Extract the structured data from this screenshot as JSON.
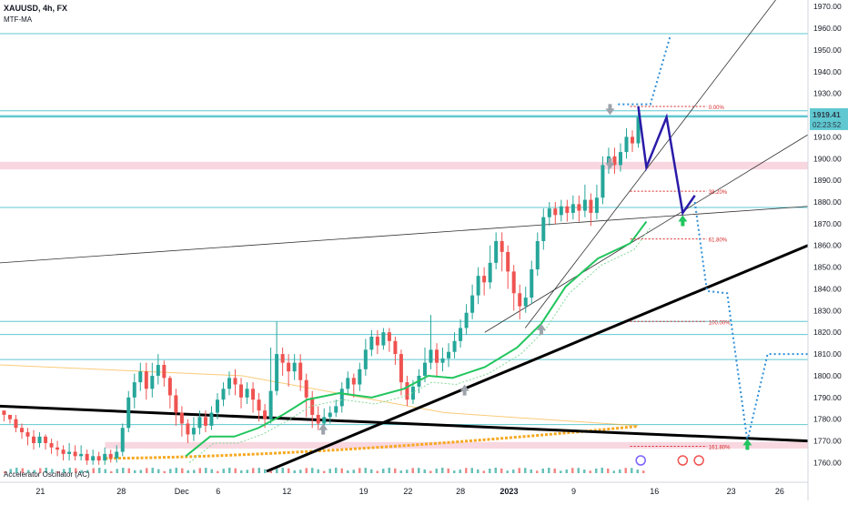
{
  "header": {
    "symbol": "XAUUSD, 4h, FX",
    "indicator": "MTF-MA"
  },
  "oscillator": {
    "label": "Accelerator Oscillator (AC)"
  },
  "price_tag": {
    "price": "1919.41",
    "countdown": "02:23:52",
    "color": "#2b3a4a"
  },
  "colors": {
    "up": "#26a69a",
    "down": "#ef5350",
    "ma": "#22c55e",
    "ma2": "#86d99a",
    "hline": "#5fc8d0",
    "zone": "#f8d7e0",
    "projection": "#2f8fd6",
    "wave": "#2a1aa8",
    "fib": "#d62828",
    "ema_orange": "#f6a821"
  },
  "chart_data": {
    "type": "candlestick",
    "symbol": "XAUUSD",
    "timeframe": "4h",
    "y_range": [
      1756,
      1973
    ],
    "y_ticks": [
      1760,
      1770,
      1780,
      1790,
      1800,
      1810,
      1820,
      1830,
      1840,
      1850,
      1860,
      1870,
      1880,
      1890,
      1900,
      1910,
      1920,
      1930,
      1940,
      1950,
      1960,
      1970
    ],
    "x_ticks": [
      {
        "label": "21",
        "x": 0.05
      },
      {
        "label": "28",
        "x": 0.15
      },
      {
        "label": "Dec",
        "x": 0.225
      },
      {
        "label": "6",
        "x": 0.27
      },
      {
        "label": "12",
        "x": 0.355
      },
      {
        "label": "19",
        "x": 0.45
      },
      {
        "label": "22",
        "x": 0.505
      },
      {
        "label": "28",
        "x": 0.57
      },
      {
        "label": "2023",
        "x": 0.63,
        "bold": true
      },
      {
        "label": "9",
        "x": 0.71
      },
      {
        "label": "16",
        "x": 0.81
      },
      {
        "label": "23",
        "x": 0.905
      },
      {
        "label": "26",
        "x": 0.965
      }
    ],
    "horizontal_levels": [
      1957.5,
      1922,
      1819,
      1777.5,
      1877.5,
      1825,
      1807.5
    ],
    "main_level": 1919.41,
    "zones": [
      {
        "from": 1895,
        "to": 1898.5,
        "x_from": 0.0,
        "x_to": 1.0
      },
      {
        "from": 1766.5,
        "to": 1769.5,
        "x_from": 0.13,
        "x_to": 1.0
      }
    ],
    "fib_levels": [
      {
        "label": "0.00%",
        "value": 1924
      },
      {
        "label": "38.20%",
        "value": 1885
      },
      {
        "label": "61.80%",
        "value": 1863
      },
      {
        "label": "100.00%",
        "value": 1825
      },
      {
        "label": "161.80%",
        "value": 1767.5
      }
    ],
    "trendlines": [
      {
        "from": [
          0.0,
          1852
        ],
        "to": [
          1.0,
          1878
        ],
        "style": "thin"
      },
      {
        "from": [
          0.65,
          1822
        ],
        "to": [
          0.96,
          1973
        ],
        "style": "thin"
      },
      {
        "from": [
          0.6,
          1820
        ],
        "to": [
          1.0,
          1911
        ],
        "style": "thin"
      },
      {
        "from": [
          0.33,
          1756
        ],
        "to": [
          1.0,
          1860
        ],
        "style": "bold"
      },
      {
        "from": [
          0.0,
          1786
        ],
        "to": [
          1.0,
          1770
        ],
        "style": "bold"
      }
    ],
    "ma_line": [
      [
        0.23,
        1763
      ],
      [
        0.26,
        1772
      ],
      [
        0.29,
        1772
      ],
      [
        0.32,
        1776
      ],
      [
        0.35,
        1782
      ],
      [
        0.38,
        1789
      ],
      [
        0.42,
        1792
      ],
      [
        0.46,
        1790
      ],
      [
        0.5,
        1794
      ],
      [
        0.53,
        1800
      ],
      [
        0.56,
        1799
      ],
      [
        0.6,
        1804
      ],
      [
        0.64,
        1813
      ],
      [
        0.67,
        1824
      ],
      [
        0.7,
        1841
      ],
      [
        0.74,
        1854
      ],
      [
        0.78,
        1861
      ],
      [
        0.8,
        1871
      ]
    ],
    "wave_path": [
      [
        0.79,
        1924
      ],
      [
        0.8,
        1896
      ],
      [
        0.825,
        1919
      ],
      [
        0.845,
        1875
      ],
      [
        0.86,
        1883
      ]
    ],
    "projection_path": [
      [
        0.86,
        1880
      ],
      [
        0.875,
        1839
      ],
      [
        0.9,
        1838
      ],
      [
        0.925,
        1770
      ],
      [
        0.95,
        1810
      ],
      [
        1.0,
        1810
      ]
    ],
    "candles": [
      [
        1784,
        1782,
        1779,
        1782
      ],
      [
        1782,
        1780,
        1778,
        1782
      ],
      [
        1780,
        1776,
        1774,
        1782
      ],
      [
        1776,
        1774,
        1771,
        1778
      ],
      [
        1774,
        1772,
        1768,
        1776
      ],
      [
        1772,
        1769,
        1766,
        1775
      ],
      [
        1769,
        1772,
        1767,
        1774
      ],
      [
        1772,
        1769,
        1766,
        1773
      ],
      [
        1769,
        1767,
        1764,
        1771
      ],
      [
        1767,
        1766,
        1763,
        1770
      ],
      [
        1766,
        1764,
        1761,
        1768
      ],
      [
        1764,
        1765,
        1761,
        1769
      ],
      [
        1765,
        1763,
        1761,
        1768
      ],
      [
        1763,
        1764,
        1761,
        1768
      ],
      [
        1764,
        1761,
        1759,
        1766
      ],
      [
        1761,
        1763,
        1759,
        1766
      ],
      [
        1763,
        1761,
        1759,
        1765
      ],
      [
        1761,
        1764,
        1759,
        1767
      ],
      [
        1764,
        1762,
        1760,
        1766
      ],
      [
        1762,
        1765,
        1760,
        1768
      ],
      [
        1765,
        1776,
        1763,
        1778
      ],
      [
        1776,
        1790,
        1774,
        1793
      ],
      [
        1790,
        1797,
        1785,
        1801
      ],
      [
        1797,
        1802,
        1793,
        1806
      ],
      [
        1802,
        1794,
        1789,
        1806
      ],
      [
        1794,
        1800,
        1790,
        1806
      ],
      [
        1800,
        1805,
        1796,
        1810
      ],
      [
        1805,
        1799,
        1795,
        1807
      ],
      [
        1799,
        1791,
        1785,
        1800
      ],
      [
        1791,
        1783,
        1777,
        1794
      ],
      [
        1783,
        1778,
        1772,
        1786
      ],
      [
        1778,
        1773,
        1769,
        1780
      ],
      [
        1773,
        1776,
        1770,
        1781
      ],
      [
        1776,
        1781,
        1773,
        1784
      ],
      [
        1781,
        1777,
        1774,
        1784
      ],
      [
        1777,
        1783,
        1775,
        1786
      ],
      [
        1783,
        1789,
        1780,
        1792
      ],
      [
        1789,
        1794,
        1786,
        1797
      ],
      [
        1794,
        1799,
        1791,
        1802
      ],
      [
        1799,
        1796,
        1791,
        1803
      ],
      [
        1796,
        1790,
        1785,
        1799
      ],
      [
        1790,
        1794,
        1787,
        1797
      ],
      [
        1794,
        1789,
        1783,
        1797
      ],
      [
        1789,
        1784,
        1779,
        1792
      ],
      [
        1784,
        1780,
        1776,
        1787
      ],
      [
        1780,
        1793,
        1778,
        1813
      ],
      [
        1793,
        1810,
        1791,
        1825
      ],
      [
        1810,
        1806,
        1800,
        1813
      ],
      [
        1806,
        1802,
        1795,
        1810
      ],
      [
        1802,
        1806,
        1798,
        1810
      ],
      [
        1806,
        1798,
        1793,
        1810
      ],
      [
        1798,
        1790,
        1781,
        1801
      ],
      [
        1790,
        1782,
        1776,
        1793
      ],
      [
        1782,
        1778,
        1775,
        1786
      ],
      [
        1778,
        1781,
        1776,
        1785
      ],
      [
        1781,
        1783,
        1778,
        1786
      ],
      [
        1783,
        1786,
        1781,
        1789
      ],
      [
        1786,
        1794,
        1783,
        1797
      ],
      [
        1794,
        1799,
        1791,
        1802
      ],
      [
        1799,
        1796,
        1790,
        1801
      ],
      [
        1796,
        1803,
        1793,
        1806
      ],
      [
        1803,
        1812,
        1800,
        1817
      ],
      [
        1812,
        1818,
        1809,
        1821
      ],
      [
        1818,
        1814,
        1810,
        1821
      ],
      [
        1814,
        1820,
        1812,
        1822
      ],
      [
        1820,
        1816,
        1811,
        1822
      ],
      [
        1816,
        1810,
        1805,
        1818
      ],
      [
        1810,
        1797,
        1791,
        1812
      ],
      [
        1797,
        1789,
        1786,
        1800
      ],
      [
        1789,
        1795,
        1787,
        1798
      ],
      [
        1795,
        1800,
        1792,
        1803
      ],
      [
        1800,
        1806,
        1797,
        1813
      ],
      [
        1806,
        1812,
        1803,
        1828
      ],
      [
        1812,
        1806,
        1800,
        1815
      ],
      [
        1806,
        1808,
        1802,
        1813
      ],
      [
        1808,
        1811,
        1804,
        1815
      ],
      [
        1811,
        1816,
        1808,
        1820
      ],
      [
        1816,
        1822,
        1813,
        1826
      ],
      [
        1822,
        1829,
        1819,
        1833
      ],
      [
        1829,
        1837,
        1826,
        1842
      ],
      [
        1837,
        1846,
        1833,
        1850
      ],
      [
        1846,
        1843,
        1837,
        1850
      ],
      [
        1843,
        1852,
        1840,
        1860
      ],
      [
        1852,
        1862,
        1849,
        1866
      ],
      [
        1862,
        1857,
        1848,
        1866
      ],
      [
        1857,
        1848,
        1840,
        1860
      ],
      [
        1848,
        1838,
        1830,
        1851
      ],
      [
        1838,
        1832,
        1826,
        1842
      ],
      [
        1832,
        1836,
        1829,
        1841
      ],
      [
        1836,
        1849,
        1833,
        1853
      ],
      [
        1849,
        1862,
        1846,
        1866
      ],
      [
        1862,
        1873,
        1858,
        1877
      ],
      [
        1873,
        1877,
        1869,
        1880
      ],
      [
        1877,
        1874,
        1870,
        1880
      ],
      [
        1874,
        1878,
        1871,
        1881
      ],
      [
        1878,
        1875,
        1871,
        1881
      ],
      [
        1875,
        1879,
        1872,
        1883
      ],
      [
        1879,
        1876,
        1871,
        1883
      ],
      [
        1876,
        1881,
        1873,
        1888
      ],
      [
        1881,
        1875,
        1869,
        1884
      ],
      [
        1875,
        1882,
        1872,
        1888
      ],
      [
        1882,
        1897,
        1879,
        1901
      ],
      [
        1897,
        1901,
        1893,
        1905
      ],
      [
        1901,
        1897,
        1893,
        1905
      ],
      [
        1897,
        1903,
        1894,
        1907
      ],
      [
        1903,
        1910,
        1900,
        1914
      ],
      [
        1910,
        1907,
        1903,
        1913
      ],
      [
        1907,
        1919,
        1905,
        1922
      ]
    ]
  }
}
